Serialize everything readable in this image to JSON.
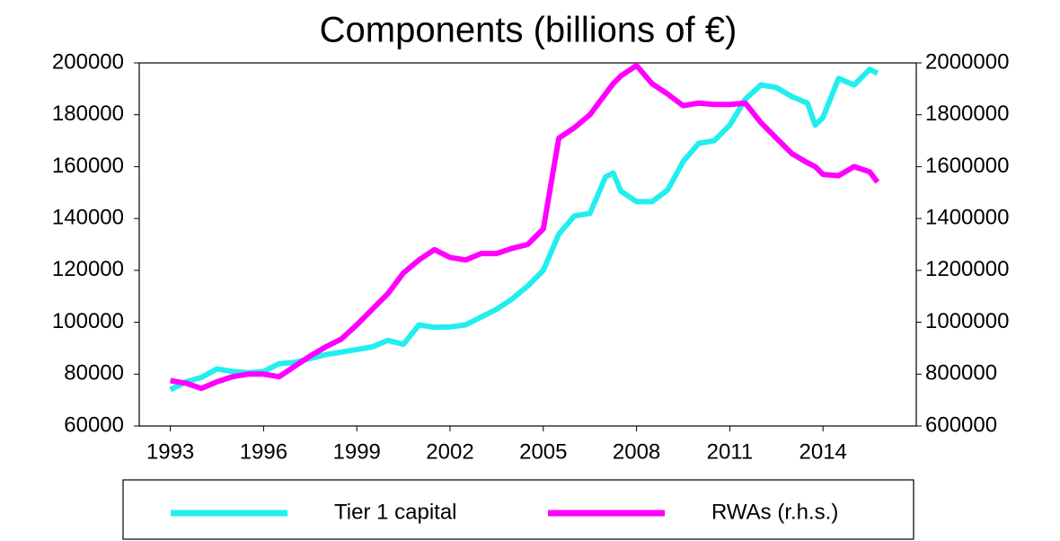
{
  "chart_data": {
    "type": "line",
    "title": "Components (billions of €)",
    "x": [
      1993,
      1993.5,
      1994,
      1994.5,
      1995,
      1995.5,
      1996,
      1996.5,
      1997,
      1997.5,
      1998,
      1998.5,
      1999,
      1999.5,
      2000,
      2000.5,
      2001,
      2001.5,
      2002,
      2002.5,
      2003,
      2003.5,
      2004,
      2004.5,
      2005,
      2005.5,
      2006,
      2006.5,
      2007,
      2007.25,
      2007.5,
      2008,
      2008.5,
      2009,
      2009.5,
      2010,
      2010.5,
      2011,
      2011.5,
      2012,
      2012.5,
      2013,
      2013.5,
      2013.75,
      2014,
      2014.5,
      2015,
      2015.5,
      2015.75
    ],
    "series": [
      {
        "name": "Tier 1 capital",
        "color": "#22eeee",
        "values": [
          74000,
          77000,
          78700,
          82000,
          81000,
          80500,
          81000,
          84000,
          84500,
          86000,
          87500,
          88500,
          89500,
          90500,
          93000,
          91500,
          99000,
          98000,
          98200,
          99000,
          102000,
          105000,
          109000,
          114000,
          120000,
          134000,
          141000,
          142000,
          156000,
          157500,
          150500,
          146500,
          146500,
          151000,
          162000,
          169000,
          170000,
          176000,
          186000,
          191500,
          190500,
          187000,
          184500,
          176000,
          179000,
          194000,
          191500,
          197500,
          196000
        ]
      },
      {
        "name": "RWAs (r.h.s.)",
        "color": "#ff00ff",
        "axis": "y2",
        "values": [
          775000,
          765000,
          745000,
          770000,
          790000,
          800000,
          800000,
          790000,
          830000,
          870000,
          905000,
          935000,
          990000,
          1050000,
          1110000,
          1190000,
          1240000,
          1280000,
          1250000,
          1240000,
          1265000,
          1265000,
          1285000,
          1300000,
          1360000,
          1710000,
          1750000,
          1800000,
          1880000,
          1920000,
          1950000,
          1990000,
          1920000,
          1880000,
          1835000,
          1845000,
          1840000,
          1840000,
          1845000,
          1770000,
          1710000,
          1650000,
          1615000,
          1600000,
          1570000,
          1565000,
          1600000,
          1580000,
          1540000
        ]
      }
    ],
    "xlim": [
      1992,
      2017
    ],
    "xticks": [
      1993,
      1996,
      1999,
      2002,
      2005,
      2008,
      2011,
      2014
    ],
    "ylim": [
      60000,
      200000
    ],
    "yticks": [
      60000,
      80000,
      100000,
      120000,
      140000,
      160000,
      180000,
      200000
    ],
    "y2lim": [
      600000,
      2000000
    ],
    "y2ticks": [
      600000,
      800000,
      1000000,
      1200000,
      1400000,
      1600000,
      1800000,
      2000000
    ],
    "grid": false,
    "legend": "bottom"
  }
}
